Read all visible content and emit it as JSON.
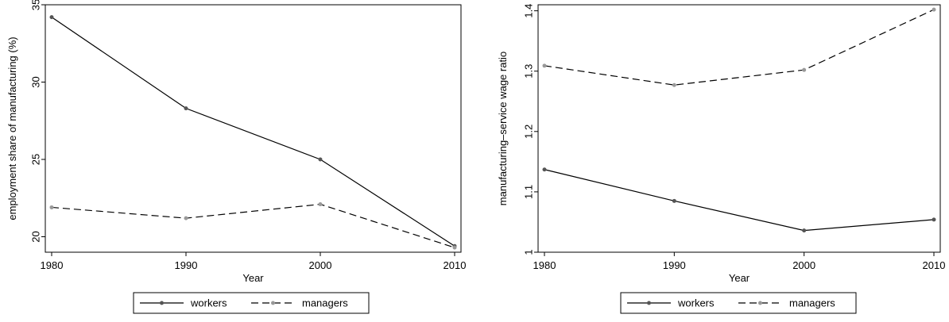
{
  "chart_data": [
    {
      "type": "line",
      "title": "",
      "xlabel": "Year",
      "ylabel": "employment share of manufacturing (%)",
      "x": [
        1980,
        1990,
        2000,
        2010
      ],
      "xlim": [
        1980,
        2010
      ],
      "ylim": [
        19,
        35
      ],
      "yticks": [
        20,
        25,
        30,
        35
      ],
      "grid": false,
      "legend_position": "bottom",
      "series": [
        {
          "name": "workers",
          "values": [
            34.2,
            28.3,
            25.0,
            19.4
          ],
          "style": "solid",
          "marker_color": "#555555"
        },
        {
          "name": "managers",
          "values": [
            21.9,
            21.2,
            22.1,
            19.3
          ],
          "style": "dashed",
          "marker_color": "#999999"
        }
      ]
    },
    {
      "type": "line",
      "title": "",
      "xlabel": "Year",
      "ylabel": "manufacturing–service wage ratio",
      "x": [
        1980,
        1990,
        2000,
        2010
      ],
      "xlim": [
        1980,
        2010
      ],
      "ylim": [
        1,
        1.41
      ],
      "yticks": [
        1,
        1.1,
        1.2,
        1.3,
        1.4
      ],
      "grid": false,
      "legend_position": "bottom",
      "series": [
        {
          "name": "workers",
          "values": [
            1.137,
            1.085,
            1.036,
            1.054
          ],
          "style": "solid",
          "marker_color": "#555555"
        },
        {
          "name": "managers",
          "values": [
            1.309,
            1.277,
            1.302,
            1.402
          ],
          "style": "dashed",
          "marker_color": "#999999"
        }
      ]
    }
  ]
}
